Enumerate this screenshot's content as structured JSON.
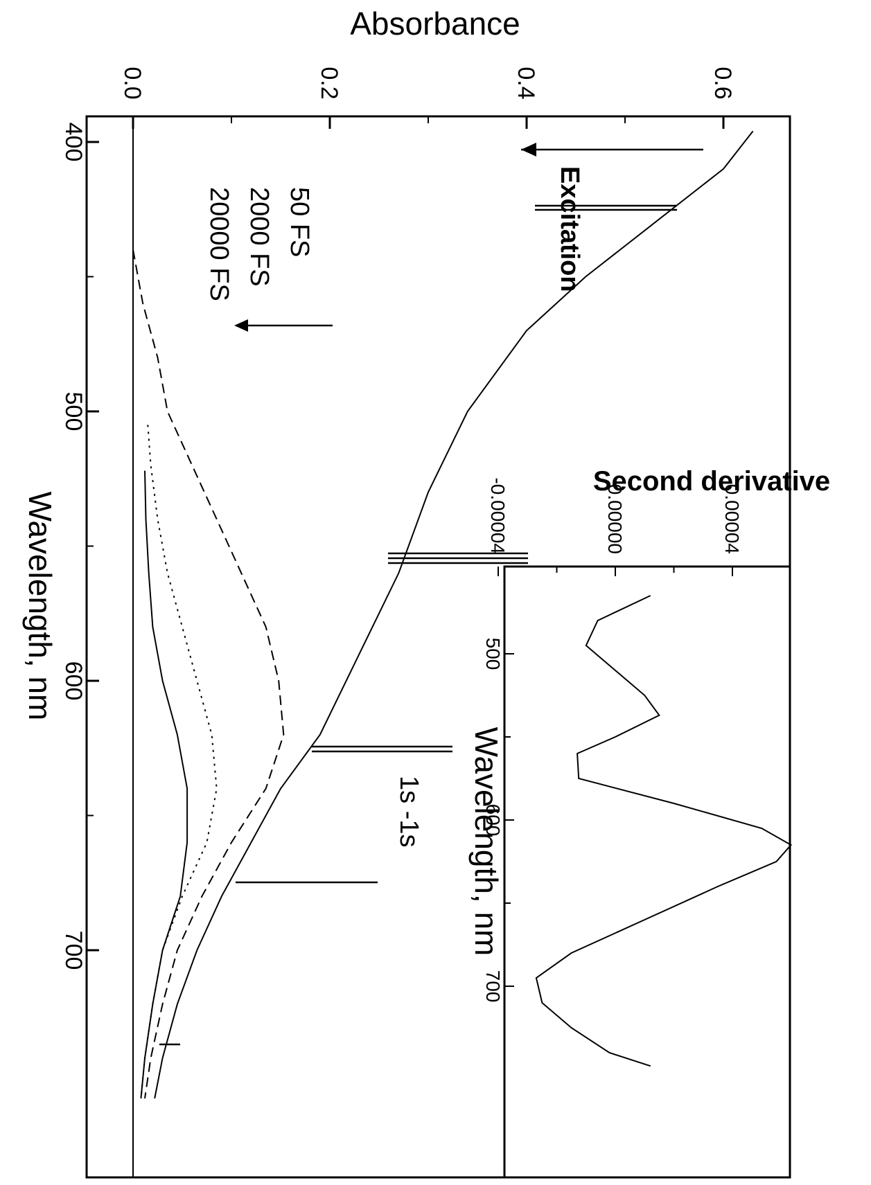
{
  "chart_data": [
    {
      "type": "line",
      "orientation": "rotated 90 degrees clockwise",
      "xlabel": "Wavelength, nm",
      "ylabel": "Absorbance",
      "xlim": [
        390,
        760
      ],
      "ylim": [
        -0.01,
        0.64
      ],
      "x_ticks": [
        "400",
        "500",
        "600",
        "700"
      ],
      "y_ticks": [
        "0.0",
        "0.2",
        "0.4",
        "0.6"
      ],
      "series": [
        {
          "style": "solid",
          "x": [
            396,
            410,
            430,
            450,
            470,
            500,
            530,
            560,
            590,
            620,
            640,
            660,
            680,
            700,
            720,
            740,
            755
          ],
          "y": [
            0.63,
            0.6,
            0.53,
            0.46,
            0.4,
            0.34,
            0.3,
            0.27,
            0.23,
            0.19,
            0.15,
            0.12,
            0.09,
            0.065,
            0.045,
            0.03,
            0.022
          ]
        },
        {
          "style": "dashed",
          "x": [
            440,
            460,
            480,
            500,
            520,
            540,
            560,
            580,
            600,
            620,
            640,
            660,
            680,
            700,
            720,
            740,
            755
          ],
          "y": [
            0.0,
            0.01,
            0.025,
            0.035,
            0.06,
            0.085,
            0.11,
            0.135,
            0.148,
            0.153,
            0.135,
            0.1,
            0.07,
            0.045,
            0.03,
            0.018,
            0.012
          ]
        },
        {
          "style": "dotted",
          "x": [
            505,
            520,
            540,
            560,
            580,
            600,
            620,
            640,
            660,
            680,
            700,
            720,
            740,
            755
          ],
          "y": [
            0.015,
            0.018,
            0.025,
            0.035,
            0.05,
            0.065,
            0.08,
            0.085,
            0.075,
            0.05,
            0.03,
            0.02,
            0.012,
            0.008
          ]
        },
        {
          "style": "solid",
          "x": [
            522,
            540,
            560,
            580,
            600,
            620,
            640,
            660,
            680,
            700,
            720,
            740,
            755
          ],
          "y": [
            0.012,
            0.013,
            0.016,
            0.02,
            0.03,
            0.045,
            0.055,
            0.055,
            0.048,
            0.03,
            0.02,
            0.012,
            0.008
          ]
        }
      ]
    },
    {
      "type": "line",
      "title": "Second derivative",
      "xlabel": "Wavelength, nm",
      "xlim": [
        460,
        750
      ],
      "ylim": [
        -4e-05,
        6.2e-05
      ],
      "x_ticks": [
        "500",
        "600",
        "700"
      ],
      "y_ticks": [
        "-0.00004",
        "0.00000",
        "0.00004"
      ],
      "series": [
        {
          "x": [
            465,
            480,
            495,
            510,
            525,
            537,
            550,
            560,
            575,
            590,
            605,
            615,
            625,
            640,
            660,
            680,
            695,
            710,
            725,
            740,
            748
          ],
          "y": [
            1.2e-05,
            -6e-06,
            -1e-05,
            0.0,
            1e-05,
            1.5e-05,
            0.0,
            -1.3e-05,
            -1.25e-05,
            2e-05,
            5e-05,
            6e-05,
            5.5e-05,
            3.5e-05,
            1e-05,
            -1.5e-05,
            -2.7e-05,
            -2.5e-05,
            -1.5e-05,
            -2e-06,
            1.2e-05
          ]
        }
      ]
    }
  ],
  "annotations": {
    "excitation": "Excitation",
    "delay_labels": [
      "50 FS",
      "2000 FS",
      "20000 FS"
    ],
    "transition": "1s -1s"
  },
  "colors": {
    "ink": "#000000",
    "background": "#ffffff"
  }
}
